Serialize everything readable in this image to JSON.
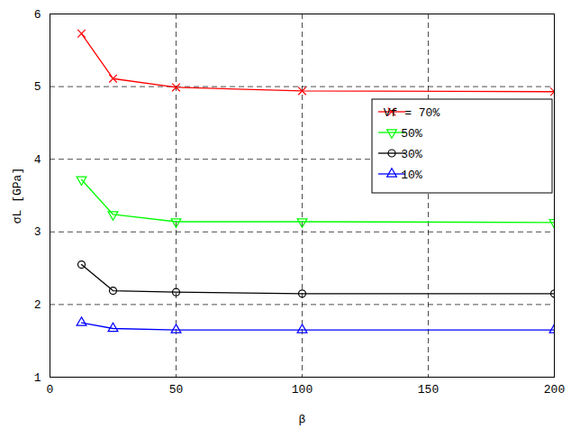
{
  "chart_data": {
    "type": "line",
    "x_label": "β",
    "y_label": "σL [GPa]",
    "x": [
      12.5,
      25,
      50,
      100,
      200
    ],
    "series": [
      {
        "name": "Vf = 70%",
        "color": "#ff0000",
        "marker": "x",
        "line_style": "solid",
        "values": [
          5.73,
          5.11,
          4.99,
          4.94,
          4.93
        ]
      },
      {
        "name": "50%",
        "color": "#00ff00",
        "marker": "triangle-down",
        "line_style": "solid",
        "values": [
          3.72,
          3.24,
          3.14,
          3.14,
          3.13
        ]
      },
      {
        "name": "30%",
        "color": "#000000",
        "marker": "circle",
        "line_style": "solid",
        "values": [
          2.55,
          2.19,
          2.17,
          2.15,
          2.15
        ]
      },
      {
        "name": "10%",
        "color": "#0000ff",
        "marker": "triangle",
        "line_style": "solid",
        "values": [
          1.75,
          1.67,
          1.65,
          1.65,
          1.65
        ]
      }
    ],
    "xlim": [
      0,
      200
    ],
    "xticks": [
      0,
      50,
      100,
      150,
      200
    ],
    "ylim": [
      1,
      6
    ],
    "yticks": [
      1,
      2,
      3,
      4,
      5,
      6
    ],
    "grid": true,
    "legend": "upper right"
  }
}
